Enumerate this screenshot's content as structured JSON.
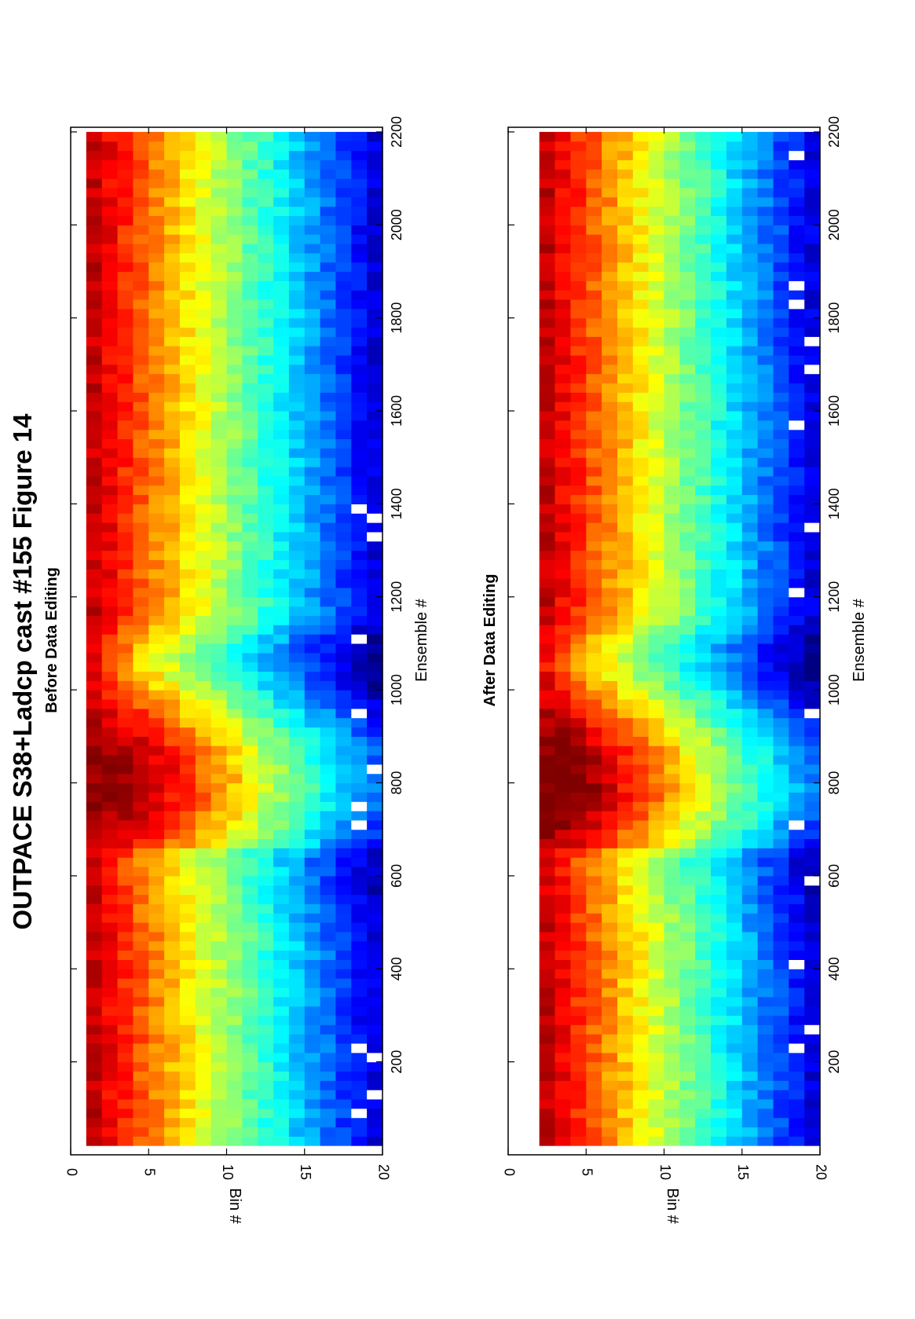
{
  "figure": {
    "title": "OUTPACE S38+Ladcp cast #155  Figure 14"
  },
  "chart_data": [
    {
      "type": "heatmap",
      "title": "Before Data Editing",
      "xlabel": "Ensemble #",
      "ylabel": "Bin #",
      "xlim": [
        0,
        2210
      ],
      "ylim": [
        0,
        20
      ],
      "x_ticks": [
        200,
        400,
        600,
        800,
        1000,
        1200,
        1400,
        1600,
        1800,
        2000,
        2200
      ],
      "y_ticks": [
        0,
        5,
        10,
        15,
        20
      ],
      "colormap": "jet",
      "data_extent_ensembles": [
        20,
        2190
      ],
      "data_start_bin": 1,
      "features": {
        "high_intensity_bins": [
          1,
          3
        ],
        "first_descent_peak_ensemble": 810,
        "low_intensity_trough_ensemble": 980,
        "sparse_white_gaps_bins": [
          18,
          20
        ]
      }
    },
    {
      "type": "heatmap",
      "title": "After Data Editing",
      "xlabel": "Ensemble #",
      "ylabel": "Bin #",
      "xlim": [
        0,
        2210
      ],
      "ylim": [
        0,
        20
      ],
      "x_ticks": [
        200,
        400,
        600,
        800,
        1000,
        1200,
        1400,
        1600,
        1800,
        2000,
        2200
      ],
      "y_ticks": [
        0,
        5,
        10,
        15,
        20
      ],
      "colormap": "jet",
      "data_extent_ensembles": [
        20,
        2190
      ],
      "data_start_bin": 2,
      "features": {
        "high_intensity_bins": [
          2,
          4
        ],
        "first_descent_peak_ensemble": 810,
        "low_intensity_trough_ensemble": 980,
        "sparse_white_gaps_bins": [
          18,
          20
        ]
      }
    }
  ]
}
